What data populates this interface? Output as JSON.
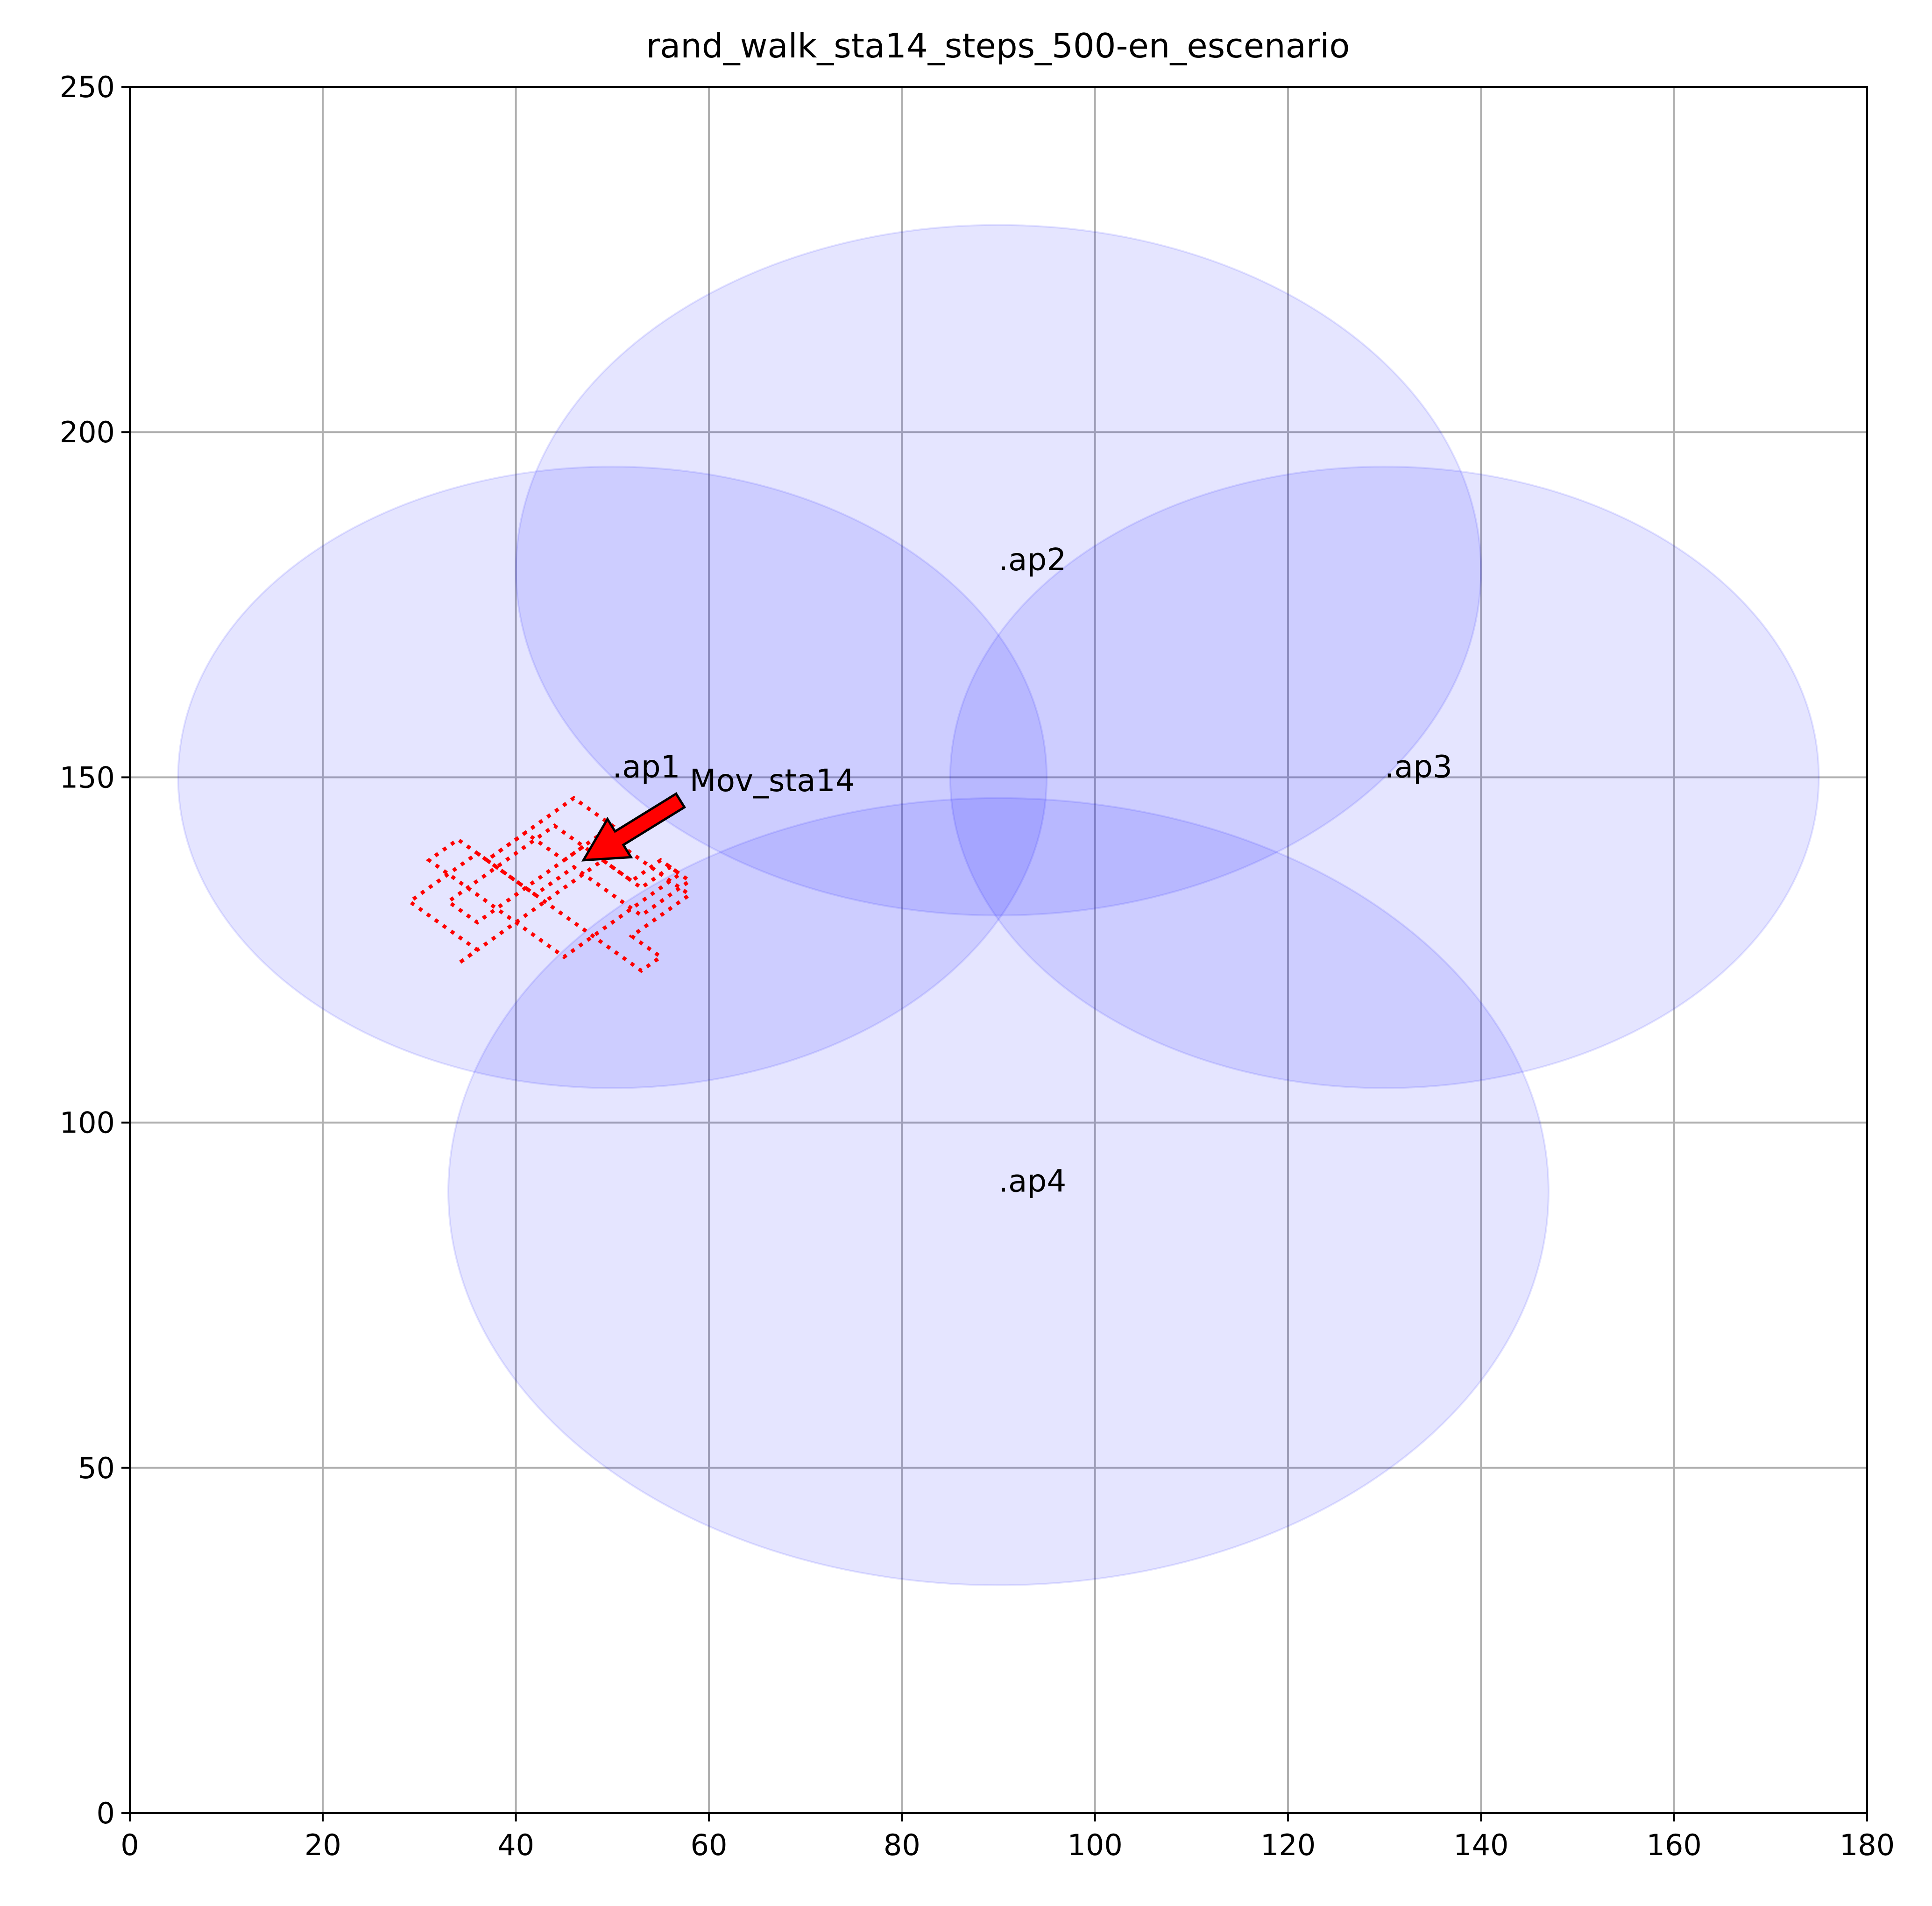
{
  "chart_data": {
    "type": "scatter",
    "title": "rand_walk_sta14_steps_500-en_escenario",
    "xlabel": "",
    "ylabel": "",
    "xlim": [
      0,
      180
    ],
    "ylim": [
      0,
      250
    ],
    "x_ticks": [
      0,
      20,
      40,
      60,
      80,
      100,
      120,
      140,
      160,
      180
    ],
    "y_ticks": [
      0,
      50,
      100,
      150,
      200,
      250
    ],
    "grid": true,
    "coverage_fill_color": "#0000ff",
    "coverage_fill_opacity": 0.1,
    "access_points": [
      {
        "label": ".ap1",
        "x": 50,
        "y": 150,
        "range": 45
      },
      {
        "label": ".ap2",
        "x": 90,
        "y": 180,
        "range": 50
      },
      {
        "label": ".ap3",
        "x": 130,
        "y": 150,
        "range": 45
      },
      {
        "label": ".ap4",
        "x": 90,
        "y": 90,
        "range": 57
      }
    ],
    "trajectory": {
      "color": "#ff0000",
      "style": "dotted",
      "steps": 500,
      "points": [
        [
          45,
          138
        ],
        [
          46,
          139
        ],
        [
          47,
          140
        ],
        [
          48,
          139
        ],
        [
          49,
          138
        ],
        [
          50,
          137
        ],
        [
          51,
          136
        ],
        [
          52,
          135
        ],
        [
          53,
          134
        ],
        [
          54,
          135
        ],
        [
          55,
          136
        ],
        [
          56,
          137
        ],
        [
          57,
          136
        ],
        [
          58,
          135
        ],
        [
          57,
          134
        ],
        [
          56,
          133
        ],
        [
          55,
          132
        ],
        [
          54,
          131
        ],
        [
          53,
          130
        ],
        [
          52,
          131
        ],
        [
          51,
          132
        ],
        [
          50,
          133
        ],
        [
          49,
          134
        ],
        [
          48,
          135
        ],
        [
          47,
          136
        ],
        [
          46,
          137
        ],
        [
          45,
          136
        ],
        [
          44,
          135
        ],
        [
          43,
          134
        ],
        [
          42,
          133
        ],
        [
          41,
          134
        ],
        [
          40,
          135
        ],
        [
          39,
          136
        ],
        [
          38,
          137
        ],
        [
          37,
          138
        ],
        [
          36,
          139
        ],
        [
          35,
          138
        ],
        [
          34,
          137
        ],
        [
          33,
          136
        ],
        [
          32,
          135
        ],
        [
          31,
          134
        ],
        [
          30,
          133
        ],
        [
          29,
          132
        ],
        [
          30,
          131
        ],
        [
          31,
          130
        ],
        [
          32,
          129
        ],
        [
          33,
          128
        ],
        [
          34,
          127
        ],
        [
          35,
          126
        ],
        [
          36,
          125
        ],
        [
          35,
          124
        ],
        [
          34,
          123
        ],
        [
          35,
          124
        ],
        [
          36,
          125
        ],
        [
          37,
          126
        ],
        [
          38,
          127
        ],
        [
          39,
          128
        ],
        [
          40,
          129
        ],
        [
          41,
          130
        ],
        [
          42,
          131
        ],
        [
          43,
          132
        ],
        [
          44,
          133
        ],
        [
          45,
          134
        ],
        [
          46,
          135
        ],
        [
          47,
          136
        ],
        [
          48,
          137
        ],
        [
          49,
          138
        ],
        [
          50,
          139
        ],
        [
          51,
          140
        ],
        [
          52,
          139
        ],
        [
          53,
          138
        ],
        [
          54,
          137
        ],
        [
          55,
          136
        ],
        [
          56,
          135
        ],
        [
          57,
          134
        ],
        [
          58,
          133
        ],
        [
          57,
          132
        ],
        [
          56,
          131
        ],
        [
          55,
          130
        ],
        [
          54,
          129
        ],
        [
          53,
          128
        ],
        [
          52,
          127
        ],
        [
          53,
          126
        ],
        [
          54,
          125
        ],
        [
          55,
          124
        ],
        [
          54,
          123
        ],
        [
          53,
          122
        ],
        [
          52,
          123
        ],
        [
          51,
          124
        ],
        [
          50,
          125
        ],
        [
          49,
          126
        ],
        [
          48,
          127
        ],
        [
          47,
          128
        ],
        [
          46,
          129
        ],
        [
          45,
          130
        ],
        [
          44,
          131
        ],
        [
          43,
          132
        ],
        [
          42,
          133
        ],
        [
          41,
          134
        ],
        [
          40,
          135
        ],
        [
          39,
          136
        ],
        [
          38,
          137
        ],
        [
          37,
          138
        ],
        [
          38,
          139
        ],
        [
          39,
          140
        ],
        [
          40,
          141
        ],
        [
          41,
          142
        ],
        [
          42,
          143
        ],
        [
          43,
          144
        ],
        [
          44,
          145
        ],
        [
          45,
          146
        ],
        [
          46,
          147
        ],
        [
          47,
          146
        ],
        [
          48,
          145
        ],
        [
          49,
          144
        ],
        [
          50,
          143
        ],
        [
          49,
          142
        ],
        [
          48,
          141
        ],
        [
          47,
          140
        ],
        [
          46,
          139
        ],
        [
          45,
          138
        ],
        [
          44,
          137
        ],
        [
          43,
          136
        ],
        [
          42,
          135
        ],
        [
          41,
          134
        ],
        [
          40,
          133
        ],
        [
          39,
          132
        ],
        [
          38,
          131
        ],
        [
          37,
          130
        ],
        [
          36,
          129
        ],
        [
          35,
          130
        ],
        [
          34,
          131
        ],
        [
          33,
          132
        ],
        [
          34,
          133
        ],
        [
          35,
          134
        ],
        [
          36,
          135
        ],
        [
          37,
          136
        ],
        [
          38,
          137
        ],
        [
          39,
          138
        ],
        [
          40,
          139
        ],
        [
          41,
          140
        ],
        [
          42,
          141
        ],
        [
          43,
          142
        ],
        [
          44,
          143
        ],
        [
          45,
          142
        ],
        [
          46,
          141
        ],
        [
          47,
          140
        ],
        [
          48,
          139
        ],
        [
          49,
          138
        ],
        [
          50,
          137
        ],
        [
          51,
          136
        ],
        [
          52,
          135
        ],
        [
          53,
          136
        ],
        [
          54,
          137
        ],
        [
          55,
          138
        ],
        [
          56,
          137
        ],
        [
          57,
          136
        ],
        [
          56,
          135
        ],
        [
          55,
          134
        ],
        [
          54,
          133
        ],
        [
          53,
          132
        ],
        [
          52,
          131
        ],
        [
          51,
          130
        ],
        [
          50,
          129
        ],
        [
          49,
          128
        ],
        [
          48,
          127
        ],
        [
          47,
          126
        ],
        [
          46,
          125
        ],
        [
          45,
          124
        ],
        [
          44,
          125
        ],
        [
          43,
          126
        ],
        [
          42,
          127
        ],
        [
          41,
          128
        ],
        [
          40,
          129
        ],
        [
          39,
          130
        ],
        [
          38,
          131
        ],
        [
          37,
          132
        ],
        [
          36,
          133
        ],
        [
          35,
          134
        ],
        [
          34,
          135
        ],
        [
          33,
          136
        ],
        [
          32,
          137
        ],
        [
          31,
          138
        ],
        [
          32,
          139
        ],
        [
          33,
          140
        ],
        [
          34,
          141
        ],
        [
          35,
          140
        ],
        [
          36,
          139
        ],
        [
          37,
          138
        ],
        [
          38,
          139
        ],
        [
          39,
          140
        ],
        [
          40,
          141
        ],
        [
          41,
          142
        ],
        [
          42,
          141
        ],
        [
          43,
          140
        ],
        [
          44,
          139
        ],
        [
          45,
          138
        ]
      ]
    },
    "annotation": {
      "text": "Mov_sta14",
      "point": [
        47,
        138
      ],
      "text_position": [
        58,
        148
      ],
      "arrow_color": "#ff0000"
    }
  }
}
